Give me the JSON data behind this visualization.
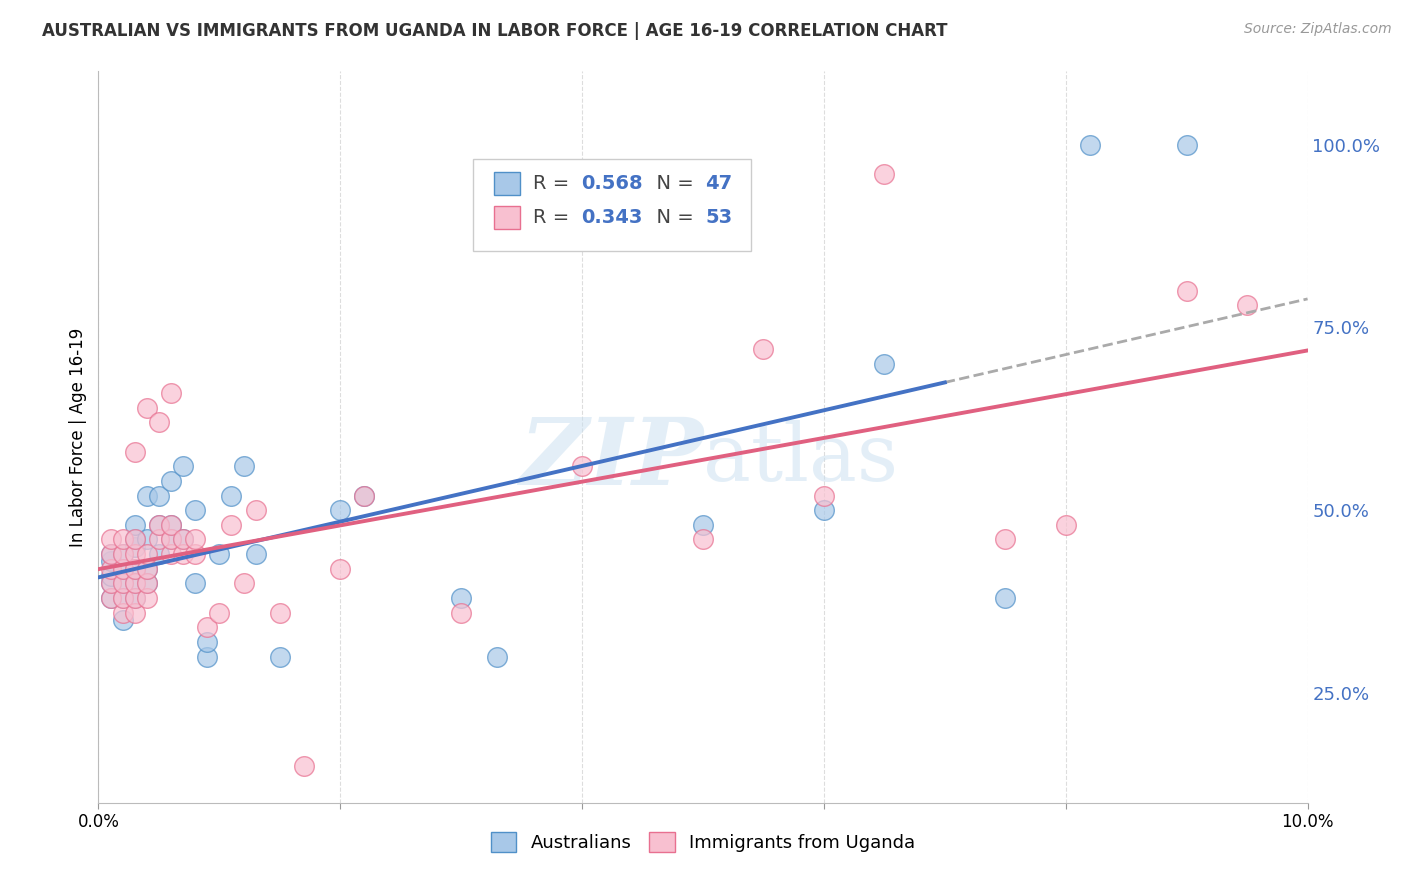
{
  "title": "AUSTRALIAN VS IMMIGRANTS FROM UGANDA IN LABOR FORCE | AGE 16-19 CORRELATION CHART",
  "source": "Source: ZipAtlas.com",
  "ylabel": "In Labor Force | Age 16-19",
  "xlim": [
    0.0,
    0.1
  ],
  "ylim": [
    0.1,
    1.1
  ],
  "yticks": [
    0.25,
    0.5,
    0.75,
    1.0
  ],
  "ytick_labels": [
    "25.0%",
    "50.0%",
    "75.0%",
    "100.0%"
  ],
  "xticks": [
    0.0,
    0.02,
    0.04,
    0.06,
    0.08,
    0.1
  ],
  "xtick_labels": [
    "0.0%",
    "",
    "",
    "",
    "",
    "10.0%"
  ],
  "blue_R": 0.568,
  "blue_N": 47,
  "pink_R": 0.343,
  "pink_N": 53,
  "blue_color": "#a8c8e8",
  "pink_color": "#f8c0d0",
  "blue_edge_color": "#5090c8",
  "pink_edge_color": "#e87090",
  "blue_line_color": "#4472c4",
  "pink_line_color": "#e06080",
  "dashed_line_color": "#aaaaaa",
  "watermark_color": "#c8dff0",
  "legend_labels": [
    "Australians",
    "Immigrants from Uganda"
  ],
  "blue_x": [
    0.001,
    0.001,
    0.001,
    0.001,
    0.001,
    0.002,
    0.002,
    0.002,
    0.002,
    0.002,
    0.003,
    0.003,
    0.003,
    0.003,
    0.003,
    0.003,
    0.004,
    0.004,
    0.004,
    0.004,
    0.005,
    0.005,
    0.005,
    0.006,
    0.006,
    0.006,
    0.007,
    0.007,
    0.008,
    0.008,
    0.009,
    0.009,
    0.01,
    0.011,
    0.012,
    0.013,
    0.015,
    0.02,
    0.022,
    0.03,
    0.033,
    0.05,
    0.06,
    0.065,
    0.075,
    0.082,
    0.09
  ],
  "blue_y": [
    0.38,
    0.4,
    0.41,
    0.43,
    0.44,
    0.35,
    0.38,
    0.4,
    0.42,
    0.44,
    0.38,
    0.4,
    0.42,
    0.45,
    0.46,
    0.48,
    0.4,
    0.42,
    0.46,
    0.52,
    0.44,
    0.48,
    0.52,
    0.46,
    0.48,
    0.54,
    0.46,
    0.56,
    0.4,
    0.5,
    0.3,
    0.32,
    0.44,
    0.52,
    0.56,
    0.44,
    0.3,
    0.5,
    0.52,
    0.38,
    0.3,
    0.48,
    0.5,
    0.7,
    0.38,
    1.0,
    1.0
  ],
  "pink_x": [
    0.001,
    0.001,
    0.001,
    0.001,
    0.001,
    0.002,
    0.002,
    0.002,
    0.002,
    0.002,
    0.002,
    0.003,
    0.003,
    0.003,
    0.003,
    0.003,
    0.003,
    0.003,
    0.004,
    0.004,
    0.004,
    0.004,
    0.004,
    0.005,
    0.005,
    0.005,
    0.006,
    0.006,
    0.006,
    0.006,
    0.007,
    0.007,
    0.008,
    0.008,
    0.009,
    0.01,
    0.011,
    0.012,
    0.013,
    0.015,
    0.017,
    0.02,
    0.022,
    0.03,
    0.04,
    0.05,
    0.055,
    0.06,
    0.065,
    0.075,
    0.08,
    0.09,
    0.095
  ],
  "pink_y": [
    0.38,
    0.4,
    0.42,
    0.44,
    0.46,
    0.36,
    0.38,
    0.4,
    0.42,
    0.44,
    0.46,
    0.36,
    0.38,
    0.4,
    0.42,
    0.44,
    0.46,
    0.58,
    0.38,
    0.4,
    0.42,
    0.44,
    0.64,
    0.46,
    0.48,
    0.62,
    0.44,
    0.46,
    0.48,
    0.66,
    0.44,
    0.46,
    0.44,
    0.46,
    0.34,
    0.36,
    0.48,
    0.4,
    0.5,
    0.36,
    0.15,
    0.42,
    0.52,
    0.36,
    0.56,
    0.46,
    0.72,
    0.52,
    0.96,
    0.46,
    0.48,
    0.8,
    0.78
  ],
  "background_color": "#ffffff",
  "grid_color": "#dddddd",
  "title_fontsize": 12,
  "axis_fontsize": 12,
  "legend_fontsize": 13
}
